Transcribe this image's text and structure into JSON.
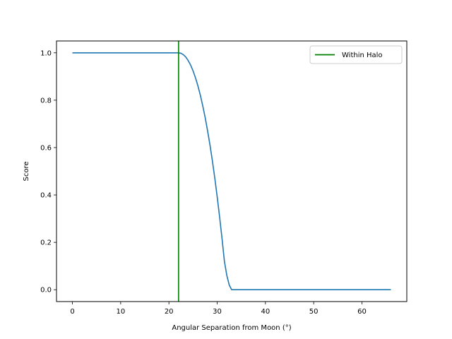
{
  "chart_data": {
    "type": "line",
    "title": "",
    "xlabel": "Angular Separation from Moon (°)",
    "ylabel": "Score",
    "xlim": [
      -3.3,
      69.3
    ],
    "ylim": [
      -0.05,
      1.05
    ],
    "x_ticks": [
      0,
      10,
      20,
      30,
      40,
      50,
      60
    ],
    "y_ticks": [
      0.0,
      0.2,
      0.4,
      0.6,
      0.8,
      1.0
    ],
    "x_tick_labels": [
      "0",
      "10",
      "20",
      "30",
      "40",
      "50",
      "60"
    ],
    "y_tick_labels": [
      "0.0",
      "0.2",
      "0.4",
      "0.6",
      "0.8",
      "1.0"
    ],
    "grid": false,
    "legend_position": "upper-right",
    "series": [
      {
        "color": "#1f77b4",
        "points": [
          [
            0,
            1.0
          ],
          [
            22,
            1.0
          ],
          [
            22.5,
            0.998
          ],
          [
            23,
            0.992
          ],
          [
            23.5,
            0.982
          ],
          [
            24,
            0.967
          ],
          [
            24.5,
            0.948
          ],
          [
            25,
            0.924
          ],
          [
            25.5,
            0.895
          ],
          [
            26,
            0.861
          ],
          [
            26.5,
            0.822
          ],
          [
            27,
            0.777
          ],
          [
            27.5,
            0.728
          ],
          [
            28,
            0.672
          ],
          [
            28.5,
            0.612
          ],
          [
            29,
            0.545
          ],
          [
            29.5,
            0.472
          ],
          [
            30,
            0.393
          ],
          [
            30.5,
            0.308
          ],
          [
            31,
            0.217
          ],
          [
            31.5,
            0.12
          ],
          [
            32,
            0.06
          ],
          [
            32.5,
            0.02
          ],
          [
            33,
            0.0
          ],
          [
            66,
            0.0
          ]
        ]
      }
    ],
    "vlines": [
      {
        "name": "Within Halo",
        "x": 22,
        "color": "#008000"
      }
    ]
  }
}
